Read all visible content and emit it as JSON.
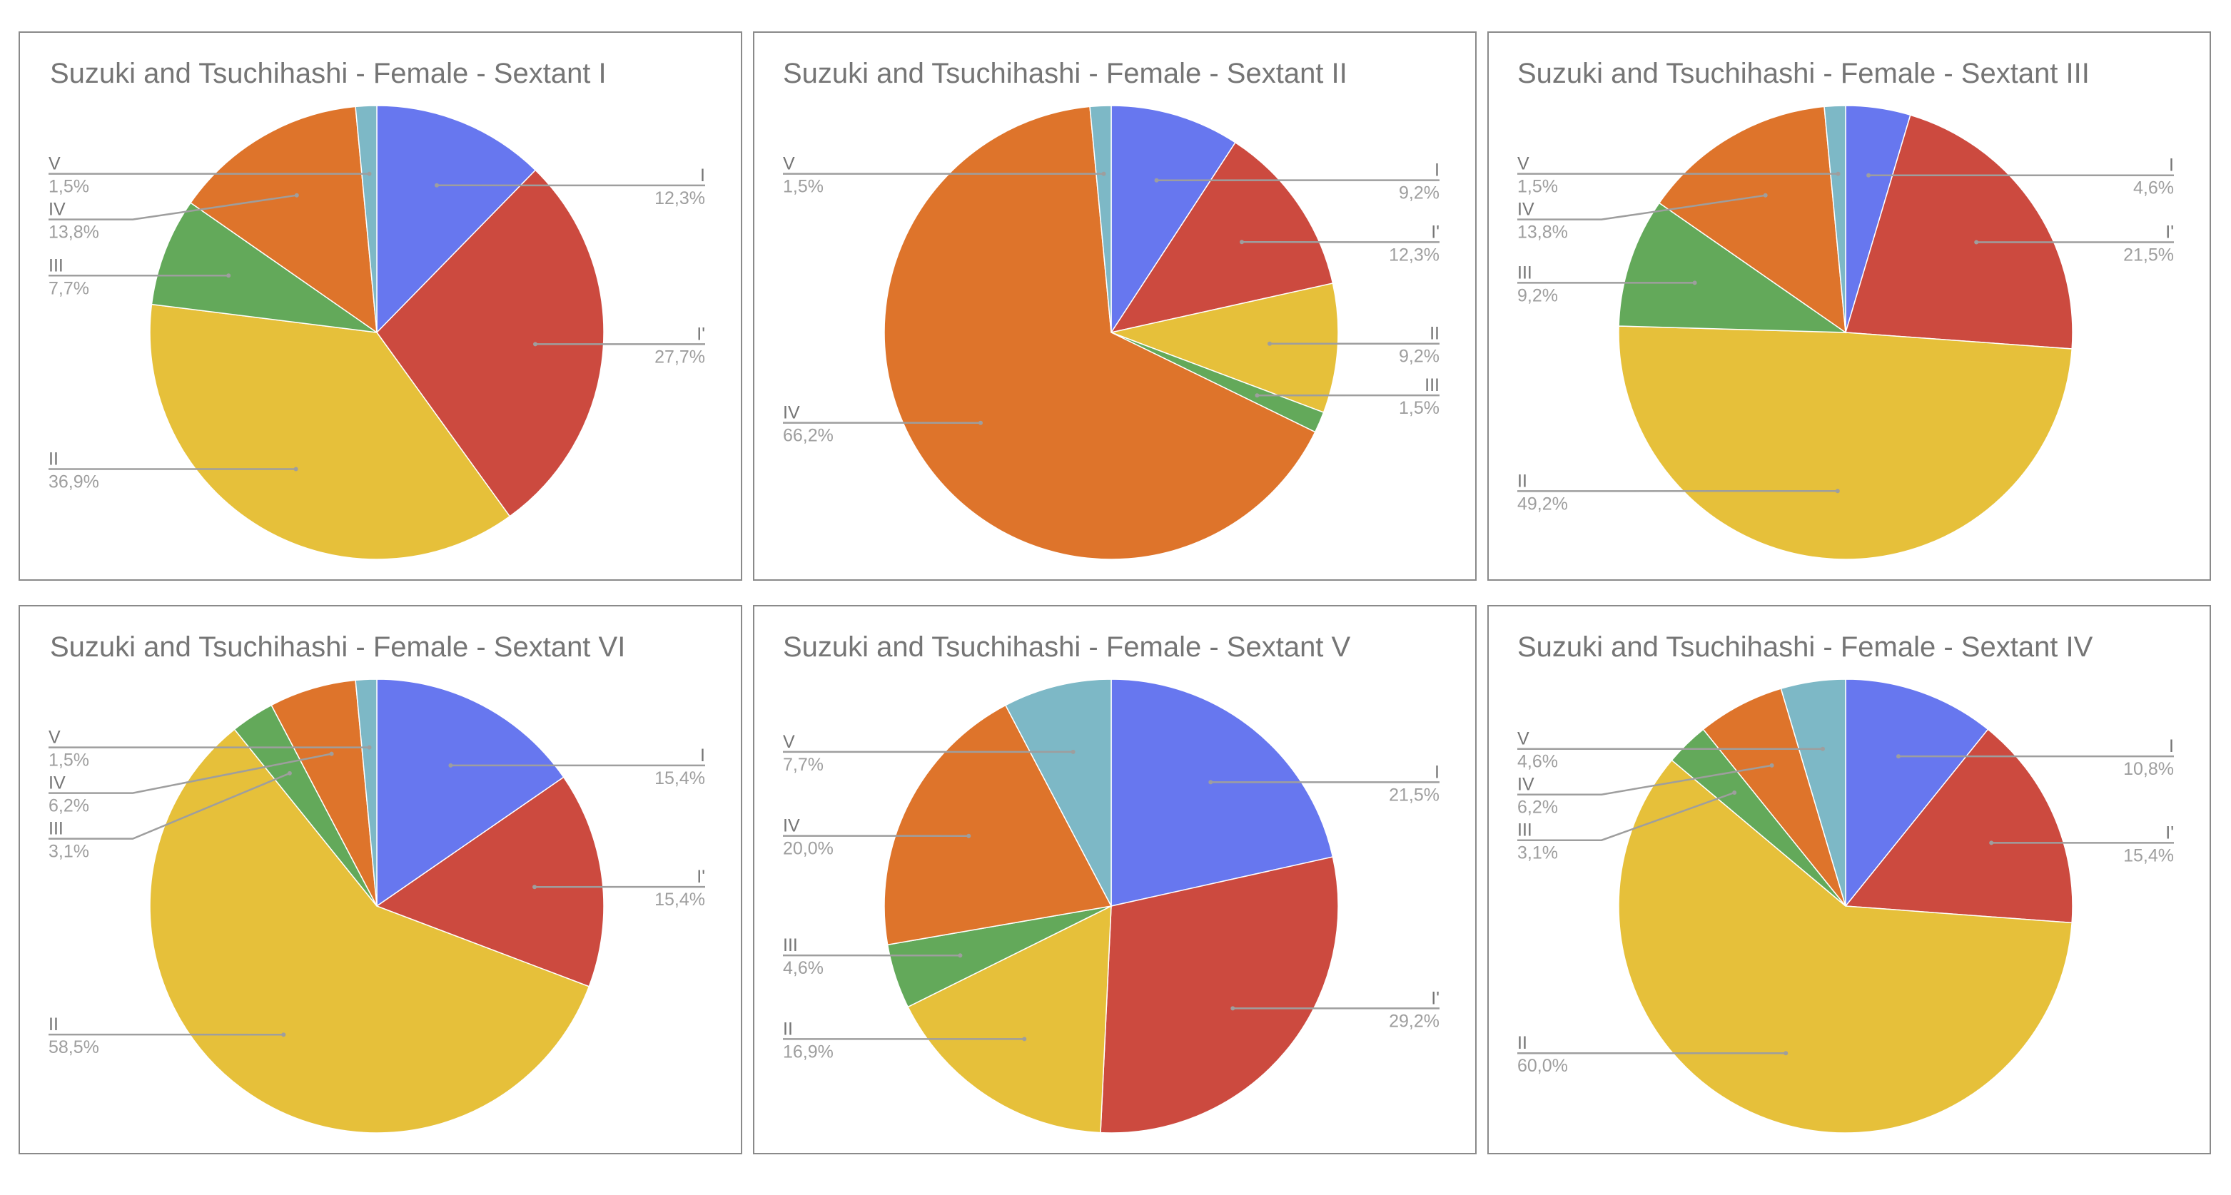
{
  "colors": {
    "I": "#6777ef",
    "I'": "#cc4a3f",
    "II": "#e6c03a",
    "III": "#63a95a",
    "IV": "#de742b",
    "V": "#7db8c6"
  },
  "chart_data": [
    {
      "type": "pie",
      "title": "Suzuki and Tsuchihashi - Female - Sextant I",
      "slices": [
        {
          "name": "I",
          "value": 12.3,
          "label": "12,3%"
        },
        {
          "name": "I'",
          "value": 27.7,
          "label": "27,7%"
        },
        {
          "name": "II",
          "value": 36.9,
          "label": "36,9%"
        },
        {
          "name": "III",
          "value": 7.7,
          "label": "7,7%"
        },
        {
          "name": "IV",
          "value": 13.8,
          "label": "13,8%"
        },
        {
          "name": "V",
          "value": 1.5,
          "label": "1,5%"
        }
      ]
    },
    {
      "type": "pie",
      "title": "Suzuki and Tsuchihashi - Female - Sextant II",
      "slices": [
        {
          "name": "I",
          "value": 9.2,
          "label": "9,2%"
        },
        {
          "name": "I'",
          "value": 12.3,
          "label": "12,3%"
        },
        {
          "name": "II",
          "value": 9.2,
          "label": "9,2%"
        },
        {
          "name": "III",
          "value": 1.5,
          "label": "1,5%"
        },
        {
          "name": "IV",
          "value": 66.2,
          "label": "66,2%"
        },
        {
          "name": "V",
          "value": 1.5,
          "label": "1,5%"
        }
      ]
    },
    {
      "type": "pie",
      "title": "Suzuki and Tsuchihashi - Female - Sextant III",
      "slices": [
        {
          "name": "I",
          "value": 4.6,
          "label": "4,6%"
        },
        {
          "name": "I'",
          "value": 21.5,
          "label": "21,5%"
        },
        {
          "name": "II",
          "value": 49.2,
          "label": "49,2%"
        },
        {
          "name": "III",
          "value": 9.2,
          "label": "9,2%"
        },
        {
          "name": "IV",
          "value": 13.8,
          "label": "13,8%"
        },
        {
          "name": "V",
          "value": 1.5,
          "label": "1,5%"
        }
      ]
    },
    {
      "type": "pie",
      "title": "Suzuki and Tsuchihashi - Female - Sextant VI",
      "slices": [
        {
          "name": "I",
          "value": 15.4,
          "label": "15,4%"
        },
        {
          "name": "I'",
          "value": 15.4,
          "label": "15,4%"
        },
        {
          "name": "II",
          "value": 58.5,
          "label": "58,5%"
        },
        {
          "name": "III",
          "value": 3.1,
          "label": "3,1%"
        },
        {
          "name": "IV",
          "value": 6.2,
          "label": "6,2%"
        },
        {
          "name": "V",
          "value": 1.5,
          "label": "1,5%"
        }
      ]
    },
    {
      "type": "pie",
      "title": "Suzuki and Tsuchihashi - Female - Sextant V",
      "slices": [
        {
          "name": "I",
          "value": 21.5,
          "label": "21,5%"
        },
        {
          "name": "I'",
          "value": 29.2,
          "label": "29,2%"
        },
        {
          "name": "II",
          "value": 16.9,
          "label": "16,9%"
        },
        {
          "name": "III",
          "value": 4.6,
          "label": "4,6%"
        },
        {
          "name": "IV",
          "value": 20.0,
          "label": "20,0%"
        },
        {
          "name": "V",
          "value": 7.7,
          "label": "7,7%"
        }
      ]
    },
    {
      "type": "pie",
      "title": "Suzuki and Tsuchihashi - Female - Sextant IV",
      "slices": [
        {
          "name": "I",
          "value": 10.8,
          "label": "10,8%"
        },
        {
          "name": "I'",
          "value": 15.4,
          "label": "15,4%"
        },
        {
          "name": "II",
          "value": 60.0,
          "label": "60,0%"
        },
        {
          "name": "III",
          "value": 3.1,
          "label": "3,1%"
        },
        {
          "name": "IV",
          "value": 6.2,
          "label": "6,2%"
        },
        {
          "name": "V",
          "value": 4.6,
          "label": "4,6%"
        }
      ]
    }
  ]
}
